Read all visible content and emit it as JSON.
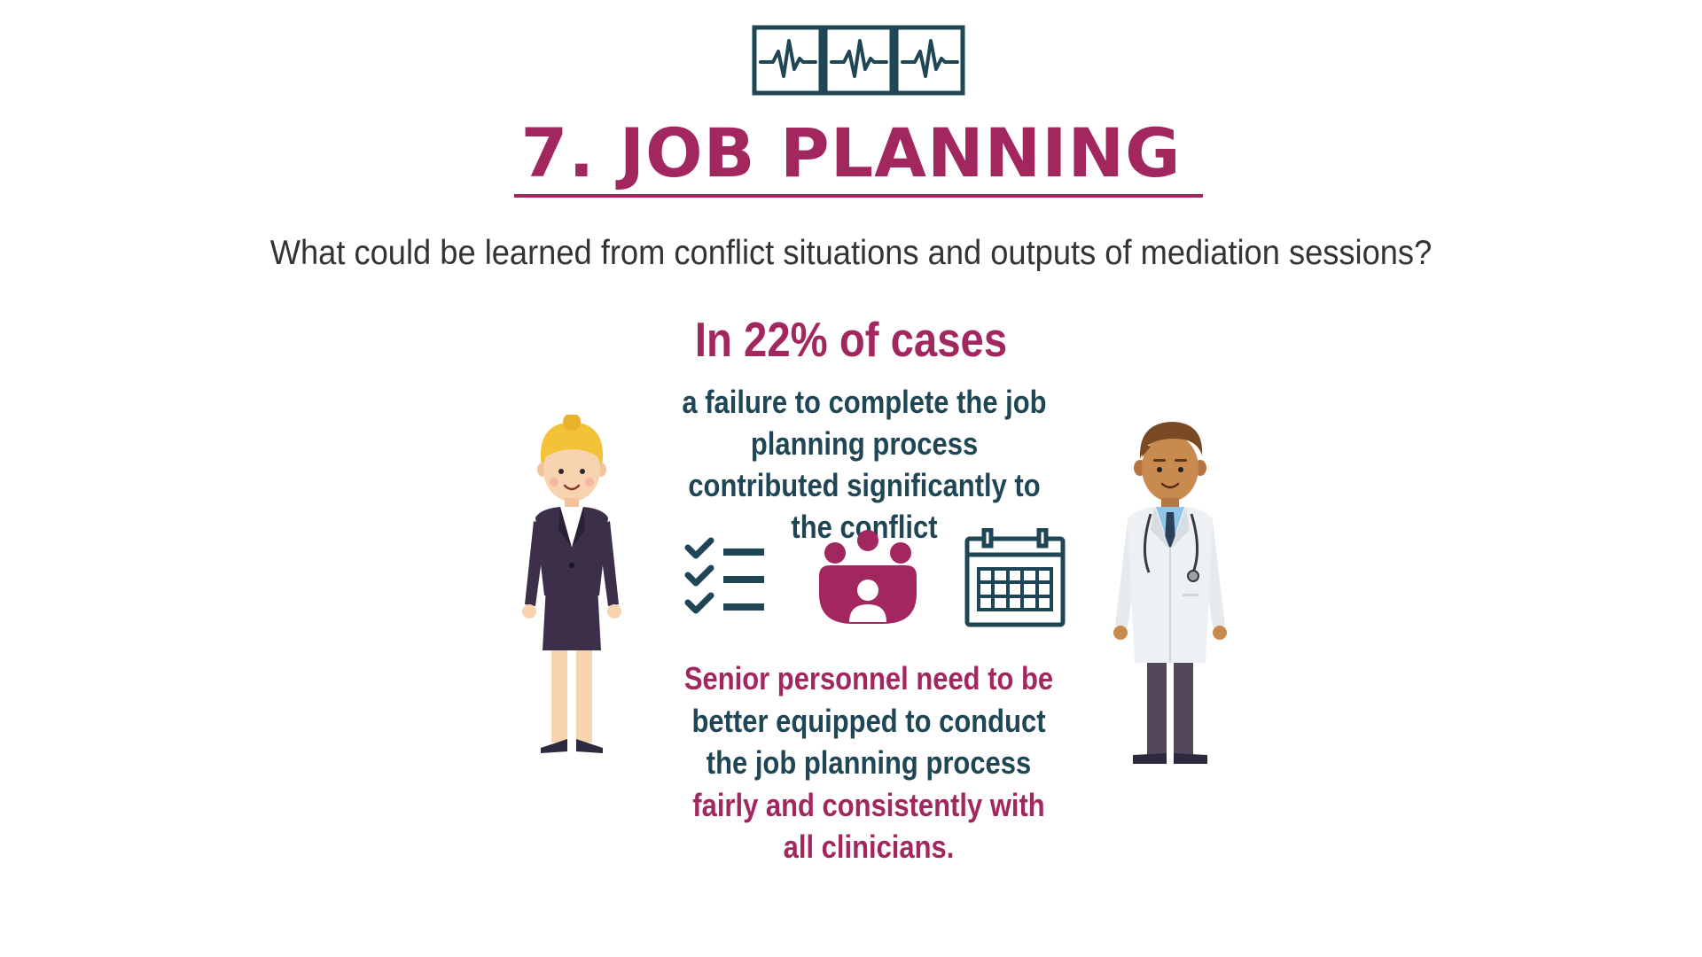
{
  "header": {
    "title": "7. JOB PLANNING",
    "question": "What could be learned from conflict situations and outputs of mediation sessions?"
  },
  "stat": {
    "headline": "In 22% of cases",
    "description": "a failure to complete the job planning process contributed significantly to the conflict"
  },
  "recommendation": {
    "lines": [
      "Senior personnel need to be",
      "better equipped to conduct",
      "the job planning process",
      "fairly and consistently with",
      "all clinicians."
    ]
  },
  "icons": {
    "header": "heartbeat-monitor-icon",
    "row": [
      "checklist-icon",
      "team-group-icon",
      "calendar-icon"
    ],
    "people": [
      "businesswoman-illustration",
      "doctor-illustration"
    ]
  },
  "colors": {
    "accent": "#a3275f",
    "teal": "#1e4655",
    "text": "#333333",
    "background": "#ffffff"
  }
}
